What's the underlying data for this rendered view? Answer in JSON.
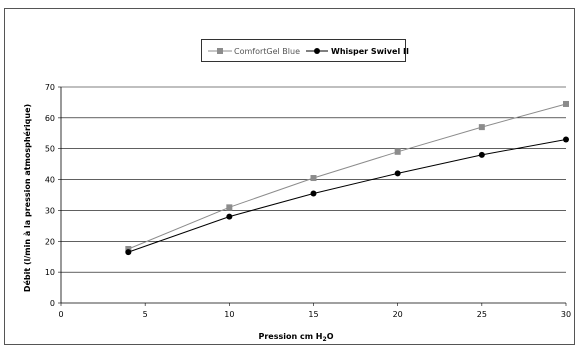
{
  "chart_data": {
    "type": "line",
    "x": [
      4,
      10,
      15,
      20,
      25,
      30
    ],
    "series": [
      {
        "name": "ComfortGel Blue",
        "values": [
          17.5,
          31,
          40.5,
          49,
          57,
          64.5
        ],
        "color": "#8c8c8c",
        "marker": "square"
      },
      {
        "name": "Whisper Swivel II",
        "values": [
          16.5,
          28,
          35.5,
          42,
          48,
          53
        ],
        "color": "#000000",
        "marker": "circle"
      }
    ],
    "xlabel": "Pression cm H",
    "xlabel_sub": "2",
    "xlabel_tail": "O",
    "ylabel": "Débit (l/min à la pression atmosphérique)",
    "xlim": [
      0,
      30
    ],
    "ylim": [
      0,
      70
    ],
    "x_ticks": [
      "0",
      "5",
      "10",
      "15",
      "20",
      "25",
      "30"
    ],
    "y_ticks": [
      "0",
      "10",
      "20",
      "30",
      "40",
      "50",
      "60",
      "70"
    ],
    "grid": "horizontal",
    "legend_position": "top-center"
  }
}
